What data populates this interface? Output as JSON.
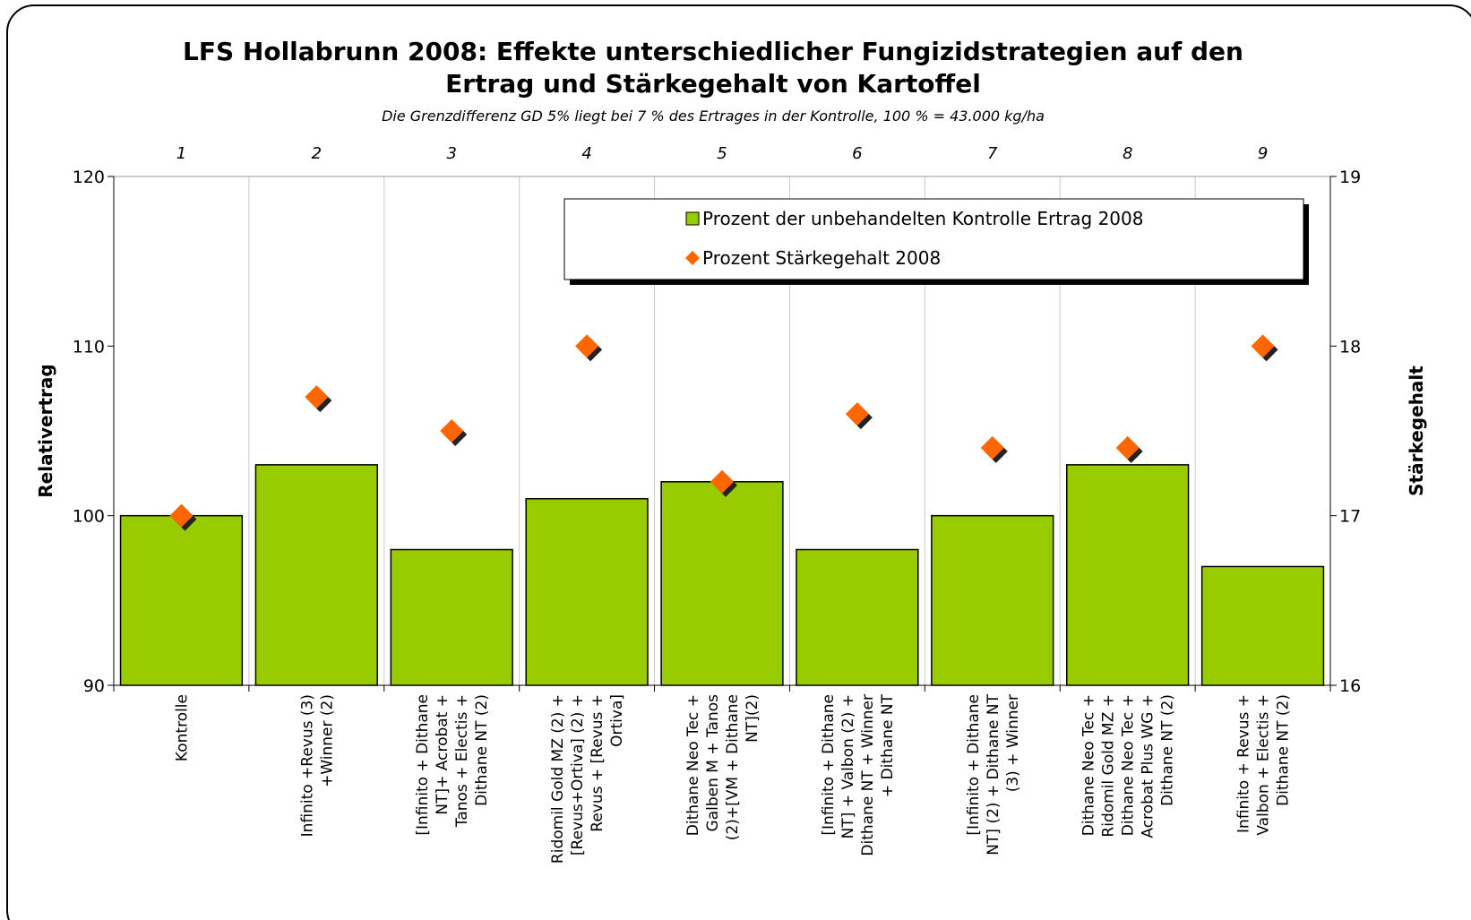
{
  "chart_data": {
    "type": "bar",
    "title": [
      "LFS Hollabrunn 2008: Effekte unterschiedlicher Fungizidstrategien auf den",
      "Ertrag und Stärkegehalt von Kartoffel"
    ],
    "subtitle": "Die Grenzdifferenz GD 5% liegt bei  7 % des Ertrages in der Kontrolle, 100 % = 43.000 kg/ha",
    "treatment_numbers": [
      "1",
      "2",
      "3",
      "4",
      "5",
      "6",
      "7",
      "8",
      "9"
    ],
    "categories": [
      [
        "Kontrolle"
      ],
      [
        "Infinito +Revus (3)",
        "+Winner (2)"
      ],
      [
        "[Infinito + Dithane",
        "NT]+ Acrobat +",
        "Tanos + Electis +",
        "Dithane NT (2)"
      ],
      [
        "Ridomil Gold MZ (2) +",
        "[Revus+Ortiva] (2) +",
        "Revus + [Revus +",
        "Ortiva]"
      ],
      [
        "Dithane Neo Tec +",
        "Galben M + Tanos",
        "(2)+[VM + Dithane",
        "NT](2)"
      ],
      [
        "[Infinito + Dithane",
        "NT] + Valbon (2) +",
        "Dithane NT + Winner",
        "+ Dithane NT"
      ],
      [
        "[Infinito + Dithane",
        "NT] (2) + Dithane NT",
        "(3) + Winner"
      ],
      [
        "Dithane Neo Tec +",
        "Ridomil Gold MZ +",
        "Dithane Neo Tec +",
        "Acrobat Plus WG +",
        "Dithane NT (2)"
      ],
      [
        "Infinito + Revus +",
        "Valbon + Electis +",
        "Dithane NT (2)"
      ]
    ],
    "series": [
      {
        "name": "Prozent der unbehandelten Kontrolle  Ertrag 2008",
        "type": "bar",
        "axis": "y",
        "color": "#99cc00",
        "values": [
          100,
          103,
          98,
          101,
          102,
          98,
          100,
          103,
          97
        ]
      },
      {
        "name": "Prozent Stärkegehalt 2008",
        "type": "scatter",
        "axis": "y2",
        "color": "#ff6600",
        "values": [
          17.0,
          17.7,
          17.5,
          18.0,
          17.2,
          17.6,
          17.4,
          17.4,
          18.0
        ]
      }
    ],
    "ylabel": "Relativertrag",
    "y2label": "Stärkegehalt",
    "ylim": [
      90,
      120
    ],
    "yticks": [
      90,
      100,
      110,
      120
    ],
    "y2lim": [
      16,
      19
    ],
    "y2ticks": [
      16,
      17,
      18,
      19
    ],
    "grid": true,
    "legend": "top-right"
  }
}
